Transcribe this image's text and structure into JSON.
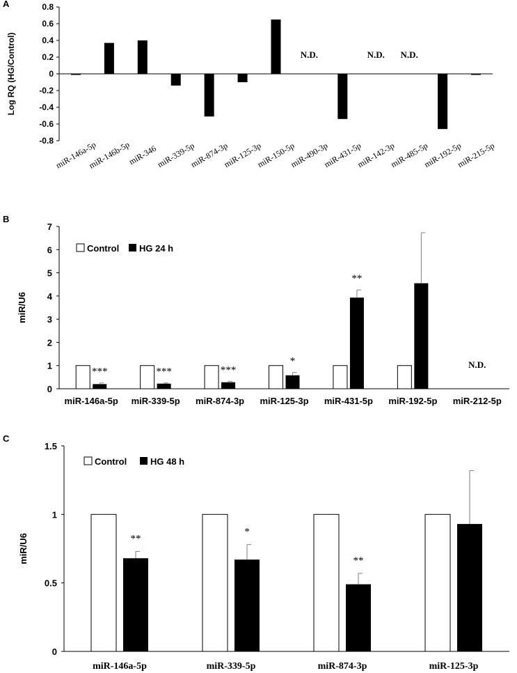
{
  "chart_data": [
    {
      "panel_label": "A",
      "type": "bar",
      "ylabel": "Log RQ (HG/Control)",
      "ylim": [
        -0.8,
        0.8
      ],
      "yticks": [
        "0.8",
        "0.6",
        "0.4",
        "0.2",
        "0",
        "-0.2",
        "-0.4",
        "-0.6",
        "-0.8"
      ],
      "categories": [
        "miR-146a-5p",
        "miR-146b-5p",
        "miR-346",
        "miR-339-5p",
        "miR-874-3p",
        "miR-125-3p",
        "miR-150-5p",
        "miR-490-3p",
        "miR-431-5p",
        "miR-142-3p",
        "miR-485-5p",
        "miR-192-5p",
        "miR-215-5p"
      ],
      "values": [
        -0.01,
        0.37,
        0.4,
        -0.14,
        -0.51,
        -0.1,
        0.65,
        null,
        -0.54,
        null,
        null,
        -0.66,
        -0.01
      ],
      "annotations": [
        "",
        "",
        "",
        "",
        "",
        "",
        "",
        "N.D.",
        "",
        "N.D.",
        "N.D.",
        "",
        ""
      ]
    },
    {
      "panel_label": "B",
      "type": "bar",
      "ylabel": "miR/U6",
      "ylim": [
        0,
        7
      ],
      "yticks": [
        "7",
        "6",
        "5",
        "4",
        "3",
        "2",
        "1",
        "0"
      ],
      "categories": [
        "miR-146a-5p",
        "miR-339-5p",
        "miR-874-3p",
        "miR-125-3p",
        "miR-431-5p",
        "miR-192-5p",
        "miR-212-5p"
      ],
      "series": [
        {
          "name": "Control",
          "values": [
            1,
            1,
            1,
            1,
            1,
            1,
            null
          ]
        },
        {
          "name": "HG 24 h",
          "values": [
            0.2,
            0.22,
            0.28,
            0.58,
            3.93,
            4.55,
            null
          ],
          "errors": [
            0.05,
            0.03,
            0.04,
            0.12,
            0.33,
            2.18,
            null
          ]
        }
      ],
      "annotations": [
        "***",
        "***",
        "***",
        "*",
        "**",
        "",
        "N.D."
      ],
      "legend": "top-left"
    },
    {
      "panel_label": "C",
      "type": "bar",
      "ylabel": "miR/U6",
      "ylim": [
        0,
        1.5
      ],
      "yticks": [
        "1.5",
        "1",
        "0.5",
        "0"
      ],
      "categories": [
        "miR-146a-5p",
        "miR-339-5p",
        "miR-874-3p",
        "miR-125-3p"
      ],
      "series": [
        {
          "name": "Control",
          "values": [
            1,
            1,
            1,
            1
          ]
        },
        {
          "name": "HG 48 h",
          "values": [
            0.68,
            0.67,
            0.49,
            0.93
          ],
          "errors": [
            0.05,
            0.11,
            0.08,
            0.39
          ]
        }
      ],
      "annotations": [
        "**",
        "*",
        "**",
        ""
      ],
      "legend": "top-left"
    }
  ]
}
